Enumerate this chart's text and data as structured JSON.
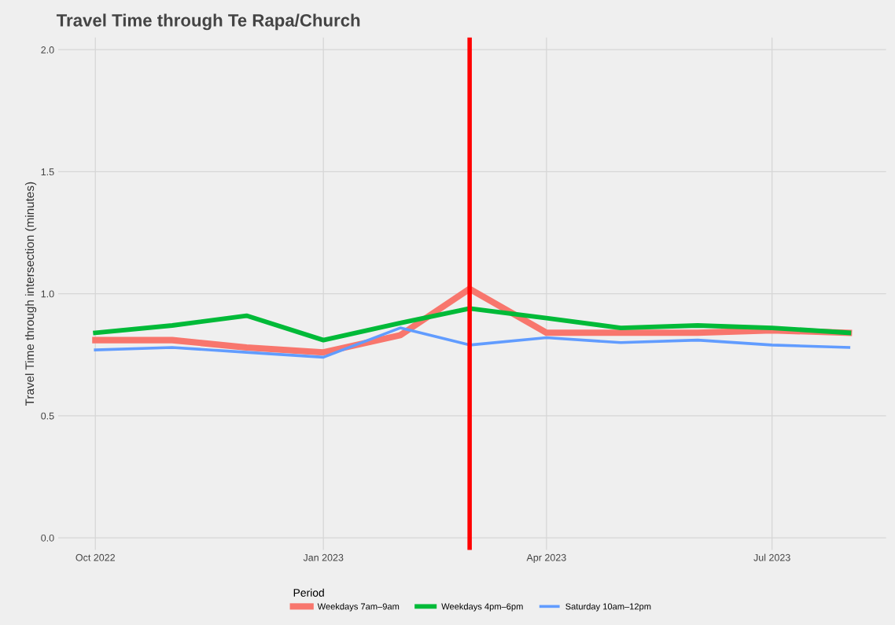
{
  "chart_data": {
    "type": "line",
    "title": "Travel Time through Te Rapa/Church",
    "ylabel": "Travel Time through intersection (minutes)",
    "legend_title": "Period",
    "x": [
      "2022-10-01",
      "2022-11-01",
      "2022-12-01",
      "2023-01-01",
      "2023-02-01",
      "2023-03-01",
      "2023-04-01",
      "2023-05-01",
      "2023-06-01",
      "2023-07-01",
      "2023-08-01"
    ],
    "series": [
      {
        "name": "Weekdays 7am–9am",
        "color": "#f8766d",
        "values": [
          0.81,
          0.81,
          0.78,
          0.76,
          0.83,
          1.02,
          0.84,
          0.84,
          0.84,
          0.85,
          0.84
        ]
      },
      {
        "name": "Weekdays 4pm–6pm",
        "color": "#00ba38",
        "values": [
          0.84,
          0.87,
          0.91,
          0.81,
          0.88,
          0.94,
          0.9,
          0.86,
          0.87,
          0.86,
          0.84
        ]
      },
      {
        "name": "Saturday 10am–12pm",
        "color": "#619cff",
        "values": [
          0.77,
          0.78,
          0.76,
          0.74,
          0.86,
          0.79,
          0.82,
          0.8,
          0.81,
          0.79,
          0.78
        ]
      }
    ],
    "xlim": [
      "2022-09-16",
      "2023-08-16"
    ],
    "xticks": [
      {
        "value": "2022-10-01",
        "label": "Oct 2022"
      },
      {
        "value": "2023-01-01",
        "label": "Jan 2023"
      },
      {
        "value": "2023-04-01",
        "label": "Apr 2023"
      },
      {
        "value": "2023-07-01",
        "label": "Jul 2023"
      }
    ],
    "ylim": [
      -0.05,
      2.05
    ],
    "yticks": [
      {
        "value": 0,
        "label": "0.0"
      },
      {
        "value": 0.5,
        "label": "0.5"
      },
      {
        "value": 1,
        "label": "1.0"
      },
      {
        "value": 1.5,
        "label": "1.5"
      },
      {
        "value": 2,
        "label": "2.0"
      }
    ],
    "ref_lines": [
      {
        "axis": "x",
        "value": "2023-03-01",
        "color": "#ff0000"
      }
    ],
    "grid": true,
    "legend": "bottom"
  }
}
